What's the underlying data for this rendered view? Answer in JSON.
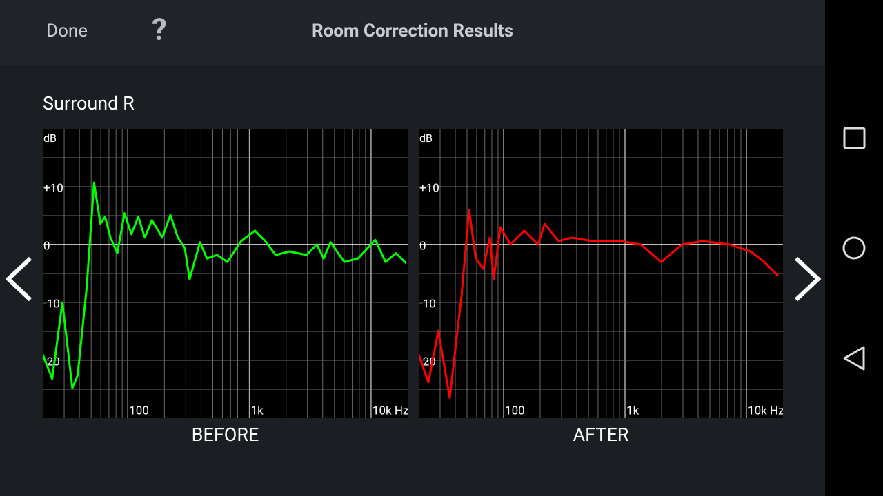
{
  "header": {
    "done": "Done",
    "help": "?",
    "title": "Room Correction Results"
  },
  "section": "Surround R",
  "chart_data": [
    {
      "type": "line",
      "title": "BEFORE",
      "y_label": "dB",
      "xlog": true,
      "grid": true,
      "xlim": [
        20,
        20000
      ],
      "ylim": [
        -30,
        20
      ],
      "xticks": [
        {
          "value": 100,
          "label": "100"
        },
        {
          "value": 1000,
          "label": "1k"
        },
        {
          "value": 10000,
          "label": "10k Hz"
        }
      ],
      "xminor": [
        30,
        40,
        50,
        60,
        70,
        80,
        90,
        200,
        300,
        400,
        500,
        600,
        700,
        800,
        900,
        2000,
        3000,
        4000,
        5000,
        6000,
        7000,
        8000,
        9000
      ],
      "yticks": [
        -20,
        -10,
        0,
        {
          "value": 10,
          "label": "+10"
        }
      ],
      "yminor": [
        -25,
        -15,
        -5,
        5,
        15
      ],
      "series": [
        {
          "color": "#00ff00",
          "x": [
            20,
            23.9,
            29,
            35,
            38.7,
            45.8,
            52.8,
            59.5,
            65,
            72,
            82,
            94,
            107,
            122,
            138,
            158,
            192,
            224,
            258,
            294,
            322,
            392,
            447,
            542,
            659,
            855,
            1110,
            1349,
            1641,
            2128,
            2944,
            3581,
            4077,
            4642,
            6026,
            7816,
            10820,
            13150,
            15980,
            19400
          ],
          "values": [
            -19,
            -23.2,
            -10,
            -24.8,
            -22.6,
            -7.7,
            10.7,
            3.6,
            4.8,
            1.2,
            -1.5,
            5.4,
            1.8,
            4.8,
            1.2,
            4.2,
            1.2,
            5.1,
            1.2,
            -0.6,
            -6,
            0.4,
            -2.4,
            -1.8,
            -3,
            0.6,
            2.4,
            0.6,
            -1.8,
            -1.2,
            -1.8,
            0,
            -2.4,
            0.4,
            -3,
            -2.4,
            0.8,
            -3,
            -1.5,
            -3.2
          ]
        }
      ]
    },
    {
      "type": "line",
      "title": "AFTER",
      "y_label": "dB",
      "xlog": true,
      "grid": true,
      "xlim": [
        20,
        20000
      ],
      "ylim": [
        -30,
        20
      ],
      "xticks": [
        {
          "value": 100,
          "label": "100"
        },
        {
          "value": 1000,
          "label": "1k"
        },
        {
          "value": 10000,
          "label": "10k Hz"
        }
      ],
      "xminor": [
        30,
        40,
        50,
        60,
        70,
        80,
        90,
        200,
        300,
        400,
        500,
        600,
        700,
        800,
        900,
        2000,
        3000,
        4000,
        5000,
        6000,
        7000,
        8000,
        9000
      ],
      "yticks": [
        -20,
        -10,
        0,
        {
          "value": 10,
          "label": "+10"
        }
      ],
      "yminor": [
        -25,
        -15,
        -5,
        5,
        15
      ],
      "series": [
        {
          "color": "#ff0000",
          "x": [
            20,
            24,
            29,
            36,
            45,
            52,
            59,
            68,
            77,
            83,
            94,
            114,
            148,
            192,
            218,
            283,
            367,
            542,
            912,
            1349,
            1991,
            2944,
            4347,
            7311,
            10820,
            14030,
            18200
          ],
          "values": [
            -19,
            -23.8,
            -14.9,
            -26.5,
            -8.9,
            6,
            -2.4,
            -4.2,
            1.2,
            -6,
            3,
            0,
            2.4,
            0,
            3.6,
            0.6,
            1.2,
            0.6,
            0.6,
            0,
            -3,
            0,
            0.6,
            0,
            -1.2,
            -3,
            -5.4
          ]
        }
      ]
    }
  ]
}
